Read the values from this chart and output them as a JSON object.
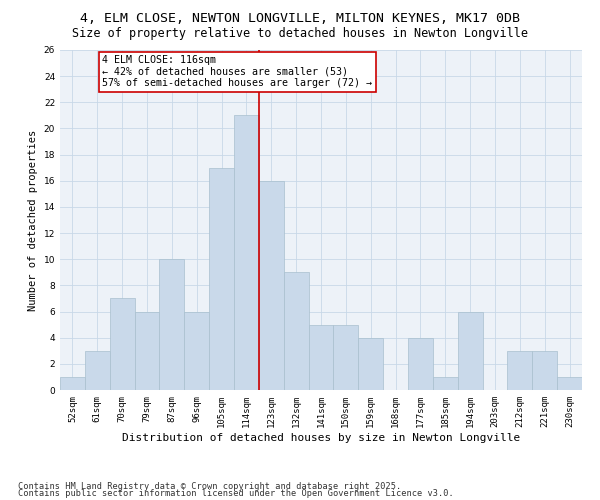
{
  "title1": "4, ELM CLOSE, NEWTON LONGVILLE, MILTON KEYNES, MK17 0DB",
  "title2": "Size of property relative to detached houses in Newton Longville",
  "xlabel": "Distribution of detached houses by size in Newton Longville",
  "ylabel": "Number of detached properties",
  "categories": [
    "52sqm",
    "61sqm",
    "70sqm",
    "79sqm",
    "87sqm",
    "96sqm",
    "105sqm",
    "114sqm",
    "123sqm",
    "132sqm",
    "141sqm",
    "150sqm",
    "159sqm",
    "168sqm",
    "177sqm",
    "185sqm",
    "194sqm",
    "203sqm",
    "212sqm",
    "221sqm",
    "230sqm"
  ],
  "values": [
    1,
    3,
    7,
    6,
    10,
    6,
    17,
    21,
    16,
    9,
    5,
    5,
    4,
    0,
    4,
    1,
    6,
    0,
    3,
    3,
    1
  ],
  "bar_color": "#c9d9ea",
  "bar_edge_color": "#a8bfce",
  "grid_color": "#c8d8e8",
  "background_color": "#edf2f8",
  "vline_color": "#cc0000",
  "annotation_text": "4 ELM CLOSE: 116sqm\n← 42% of detached houses are smaller (53)\n57% of semi-detached houses are larger (72) →",
  "annotation_box_color": "#ffffff",
  "annotation_box_edge": "#cc0000",
  "ylim": [
    0,
    26
  ],
  "yticks": [
    0,
    2,
    4,
    6,
    8,
    10,
    12,
    14,
    16,
    18,
    20,
    22,
    24,
    26
  ],
  "footer1": "Contains HM Land Registry data © Crown copyright and database right 2025.",
  "footer2": "Contains public sector information licensed under the Open Government Licence v3.0.",
  "title1_fontsize": 9.5,
  "title2_fontsize": 8.5,
  "xlabel_fontsize": 8,
  "ylabel_fontsize": 7.5,
  "tick_fontsize": 6.5,
  "annotation_fontsize": 7.2,
  "footer_fontsize": 6.2
}
